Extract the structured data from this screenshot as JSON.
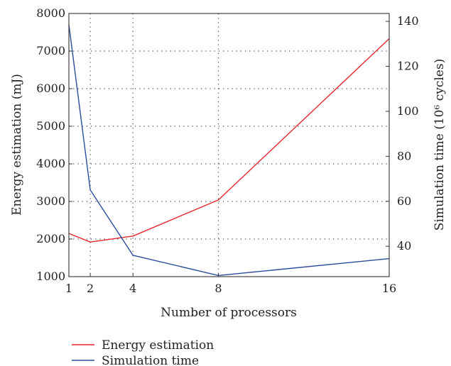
{
  "chart_data": {
    "type": "line",
    "x": [
      1,
      2,
      4,
      8,
      16
    ],
    "xlabel": "Number of processors",
    "xticks": [
      "1",
      "2",
      "4",
      "8",
      "16"
    ],
    "xlim": [
      1,
      16
    ],
    "ylabel_left": "Energy estimation (mJ)",
    "ylim_left": [
      1000,
      8000
    ],
    "yticks_left": [
      "1000",
      "2000",
      "3000",
      "4000",
      "5000",
      "6000",
      "7000",
      "8000"
    ],
    "ylabel_right": "Simulation time (10⁶ cycles)",
    "ylim_right": [
      26.5,
      143.5
    ],
    "yticks_right": [
      "40",
      "60",
      "80",
      "100",
      "120",
      "140"
    ],
    "grid": true,
    "legend_position": "bottom",
    "series": [
      {
        "name": "Energy estimation",
        "axis": "left",
        "color": "#e8262e",
        "values": [
          2150,
          1920,
          2080,
          3040,
          7330
        ]
      },
      {
        "name": "Simulation time",
        "axis": "right",
        "color": "#2b4c9b",
        "values": [
          138.5,
          65,
          36,
          27,
          34.5
        ]
      }
    ]
  }
}
